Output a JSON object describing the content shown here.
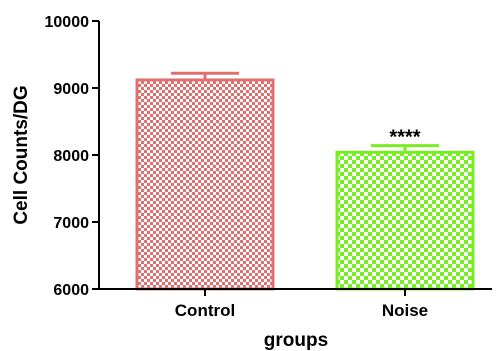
{
  "chart_data": {
    "type": "bar",
    "categories": [
      "Control",
      "Noise"
    ],
    "values": [
      9120,
      8040
    ],
    "errors": [
      100,
      100
    ],
    "xlabel": "groups",
    "ylabel": "Cell Counts/DG",
    "ylim": [
      6000,
      10000
    ],
    "yticks": [
      "6000",
      "7000",
      "8000",
      "9000",
      "10000"
    ],
    "grid": false,
    "annotations": [
      "",
      "****"
    ],
    "colors": [
      "#e07070",
      "#77ee22"
    ],
    "fill_pattern": "checkerboard"
  }
}
